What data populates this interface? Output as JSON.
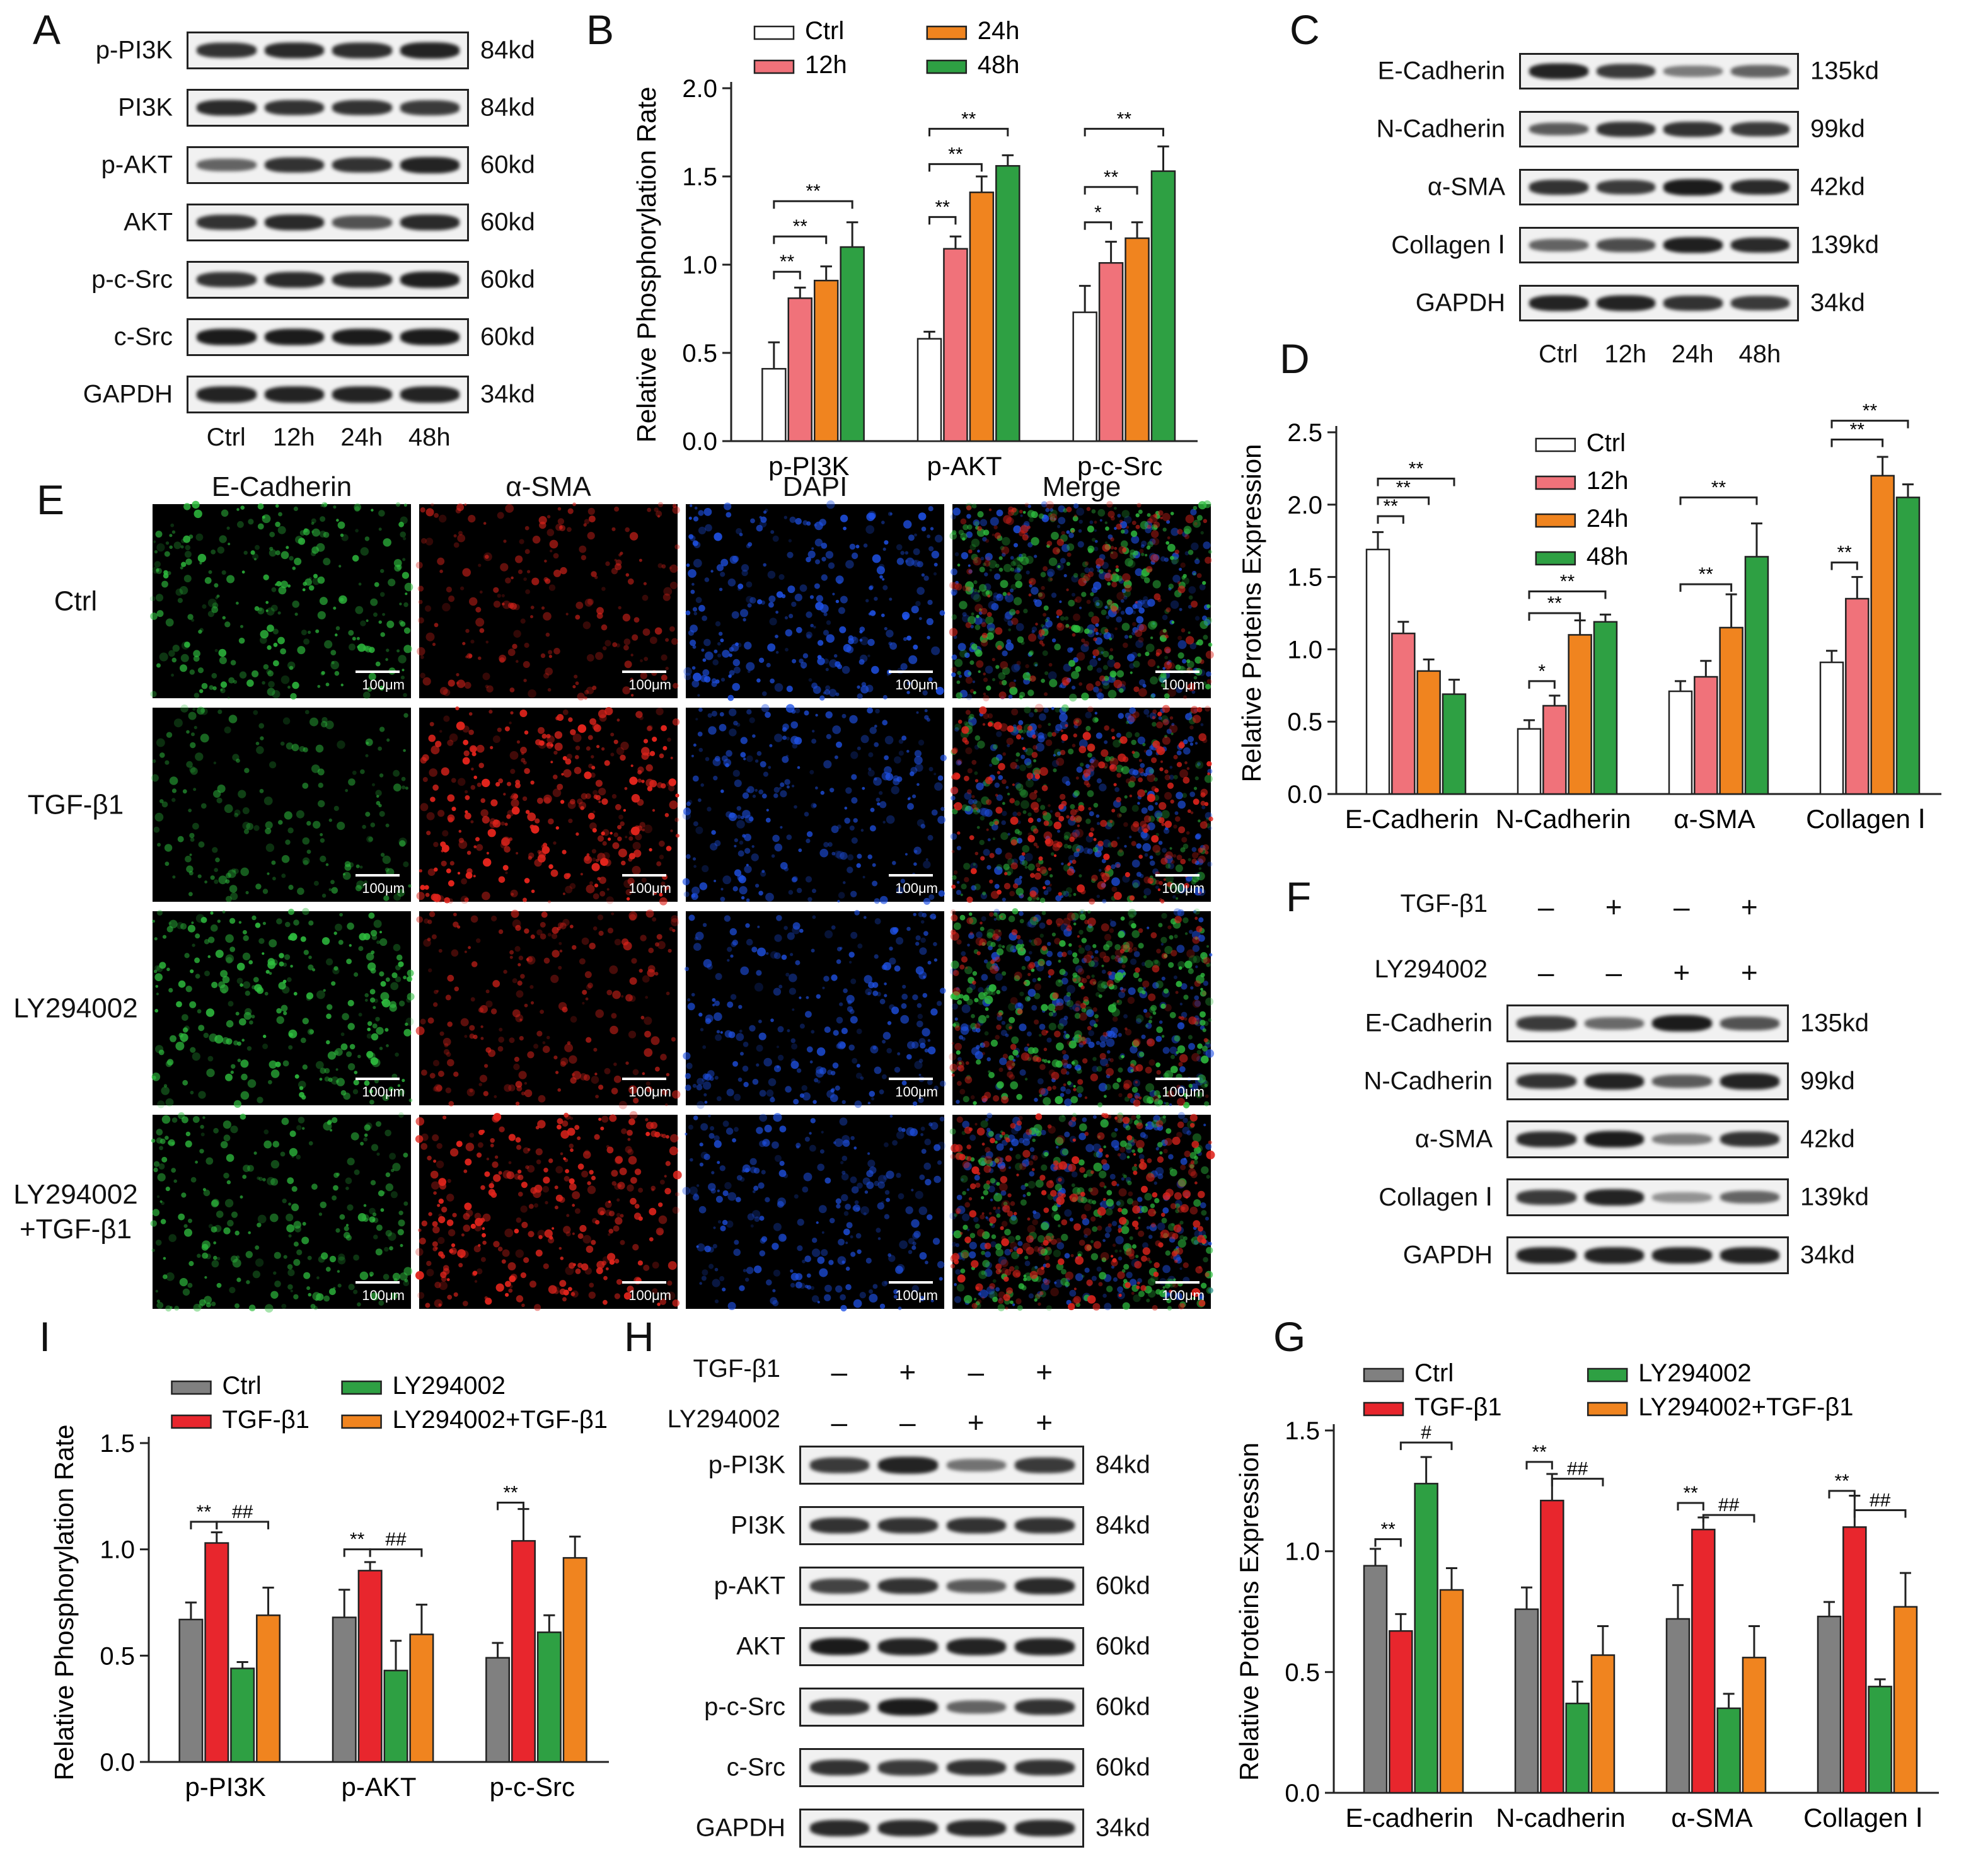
{
  "panel_labels": {
    "A": "A",
    "B": "B",
    "C": "C",
    "D": "D",
    "E": "E",
    "F": "F",
    "G": "G",
    "H": "H",
    "I": "I"
  },
  "blot_A": {
    "rows": [
      {
        "name": "p-PI3K",
        "kd": "84kd",
        "intensity": [
          0.85,
          0.9,
          0.88,
          0.95
        ]
      },
      {
        "name": "PI3K",
        "kd": "84kd",
        "intensity": [
          0.9,
          0.85,
          0.85,
          0.8
        ]
      },
      {
        "name": "p-AKT",
        "kd": "60kd",
        "intensity": [
          0.55,
          0.85,
          0.85,
          0.95
        ]
      },
      {
        "name": "AKT",
        "kd": "60kd",
        "intensity": [
          0.85,
          0.9,
          0.65,
          0.9
        ]
      },
      {
        "name": "p-c-Src",
        "kd": "60kd",
        "intensity": [
          0.85,
          0.9,
          0.9,
          0.98
        ]
      },
      {
        "name": "c-Src",
        "kd": "60kd",
        "intensity": [
          1,
          1,
          1,
          1
        ]
      },
      {
        "name": "GAPDH",
        "kd": "34kd",
        "intensity": [
          0.95,
          0.95,
          0.95,
          0.95
        ]
      }
    ],
    "lanes": [
      "Ctrl",
      "12h",
      "24h",
      "48h"
    ]
  },
  "blot_C": {
    "rows": [
      {
        "name": "E-Cadherin",
        "kd": "135kd",
        "intensity": [
          0.95,
          0.8,
          0.4,
          0.55
        ]
      },
      {
        "name": "N-Cadherin",
        "kd": "99kd",
        "intensity": [
          0.6,
          0.85,
          0.85,
          0.8
        ]
      },
      {
        "name": "α-SMA",
        "kd": "42kd",
        "intensity": [
          0.85,
          0.8,
          1,
          0.9
        ]
      },
      {
        "name": "Collagen Ⅰ",
        "kd": "139kd",
        "intensity": [
          0.55,
          0.7,
          0.98,
          0.9
        ]
      },
      {
        "name": "GAPDH",
        "kd": "34kd",
        "intensity": [
          0.95,
          0.95,
          0.85,
          0.8
        ]
      }
    ],
    "lanes": [
      "Ctrl",
      "12h",
      "24h",
      "48h"
    ]
  },
  "blot_F": {
    "treatments": [
      {
        "name": "TGF-β1",
        "signs": [
          "–",
          "+",
          "–",
          "+"
        ]
      },
      {
        "name": "LY294002",
        "signs": [
          "–",
          "–",
          "+",
          "+"
        ]
      }
    ],
    "rows": [
      {
        "name": "E-Cadherin",
        "kd": "135kd",
        "intensity": [
          0.8,
          0.5,
          1,
          0.65
        ]
      },
      {
        "name": "N-Cadherin",
        "kd": "99kd",
        "intensity": [
          0.85,
          0.95,
          0.6,
          0.95
        ]
      },
      {
        "name": "α-SMA",
        "kd": "42kd",
        "intensity": [
          0.9,
          1,
          0.4,
          0.85
        ]
      },
      {
        "name": "Collagen Ⅰ",
        "kd": "139kd",
        "intensity": [
          0.8,
          0.95,
          0.25,
          0.55
        ]
      },
      {
        "name": "GAPDH",
        "kd": "34kd",
        "intensity": [
          0.95,
          0.95,
          0.95,
          0.95
        ]
      }
    ]
  },
  "blot_H": {
    "treatments": [
      {
        "name": "TGF-β1",
        "signs": [
          "–",
          "+",
          "–",
          "+"
        ]
      },
      {
        "name": "LY294002",
        "signs": [
          "–",
          "–",
          "+",
          "+"
        ]
      }
    ],
    "rows": [
      {
        "name": "p-PI3K",
        "kd": "84kd",
        "intensity": [
          0.8,
          0.95,
          0.45,
          0.8
        ]
      },
      {
        "name": "PI3K",
        "kd": "84kd",
        "intensity": [
          0.85,
          0.85,
          0.85,
          0.85
        ]
      },
      {
        "name": "p-AKT",
        "kd": "60kd",
        "intensity": [
          0.75,
          0.85,
          0.6,
          0.9
        ]
      },
      {
        "name": "AKT",
        "kd": "60kd",
        "intensity": [
          1,
          0.95,
          0.95,
          0.95
        ]
      },
      {
        "name": "p-c-Src",
        "kd": "60kd",
        "intensity": [
          0.85,
          1,
          0.55,
          0.85
        ]
      },
      {
        "name": "c-Src",
        "kd": "60kd",
        "intensity": [
          0.85,
          0.8,
          0.85,
          0.85
        ]
      },
      {
        "name": "GAPDH",
        "kd": "34kd",
        "intensity": [
          0.9,
          0.9,
          0.9,
          0.9
        ]
      }
    ]
  },
  "microscopy_E": {
    "columns": [
      "E-Cadherin",
      "α-SMA",
      "DAPI",
      "Merge"
    ],
    "rows": [
      "Ctrl",
      "TGF-β1",
      "LY294002",
      "LY294002\n+TGF-β1"
    ],
    "scale_label": "100μm",
    "colors": {
      "green": "#2fbf3f",
      "red": "#e0241c",
      "blue": "#1f52e8"
    }
  },
  "chart_data": [
    {
      "panel": "B",
      "type": "bar",
      "ylabel": "Relative Phosphorylation Rate",
      "xlabel": "",
      "ylim": [
        0,
        2.0
      ],
      "yticks": [
        "0.0",
        "0.5",
        "1.0",
        "1.5",
        "2.0"
      ],
      "categories": [
        "p-PI3K",
        "p-AKT",
        "p-c-Src"
      ],
      "series": [
        {
          "name": "Ctrl",
          "color": "#ffffff",
          "values": [
            0.41,
            0.58,
            0.73
          ],
          "err": [
            0.15,
            0.04,
            0.15
          ]
        },
        {
          "name": "12h",
          "color": "#f0727a",
          "values": [
            0.81,
            1.09,
            1.01
          ],
          "err": [
            0.06,
            0.07,
            0.12
          ]
        },
        {
          "name": "24h",
          "color": "#f0841f",
          "values": [
            0.91,
            1.41,
            1.15
          ],
          "err": [
            0.08,
            0.09,
            0.09
          ]
        },
        {
          "name": "48h",
          "color": "#2ea043",
          "values": [
            1.1,
            1.56,
            1.53
          ],
          "err": [
            0.14,
            0.06,
            0.14
          ]
        }
      ],
      "legend": "top",
      "legend_order": [
        0,
        2,
        1,
        3
      ],
      "sig": [
        {
          "g": 0,
          "from": 0,
          "to": 1,
          "label": "**",
          "y": 0.96
        },
        {
          "g": 0,
          "from": 0,
          "to": 2,
          "label": "**",
          "y": 1.16
        },
        {
          "g": 0,
          "from": 0,
          "to": 3,
          "label": "**",
          "y": 1.36
        },
        {
          "g": 1,
          "from": 0,
          "to": 1,
          "label": "**",
          "y": 1.27
        },
        {
          "g": 1,
          "from": 0,
          "to": 2,
          "label": "**",
          "y": 1.57
        },
        {
          "g": 1,
          "from": 0,
          "to": 3,
          "label": "**",
          "y": 1.77
        },
        {
          "g": 2,
          "from": 0,
          "to": 1,
          "label": "*",
          "y": 1.24
        },
        {
          "g": 2,
          "from": 0,
          "to": 2,
          "label": "**",
          "y": 1.44
        },
        {
          "g": 2,
          "from": 0,
          "to": 3,
          "label": "**",
          "y": 1.77
        }
      ]
    },
    {
      "panel": "D",
      "type": "bar",
      "ylabel": "Relative Proteins Expression",
      "xlabel": "",
      "ylim": [
        0,
        2.5
      ],
      "yticks": [
        "0.0",
        "0.5",
        "1.0",
        "1.5",
        "2.0",
        "2.5"
      ],
      "categories": [
        "E-Cadherin",
        "N-Cadherin",
        "α-SMA",
        "Collagen Ⅰ"
      ],
      "series": [
        {
          "name": "Ctrl",
          "color": "#ffffff",
          "values": [
            1.69,
            0.45,
            0.71,
            0.91
          ],
          "err": [
            0.12,
            0.06,
            0.07,
            0.08
          ]
        },
        {
          "name": "12h",
          "color": "#f0727a",
          "values": [
            1.11,
            0.61,
            0.81,
            1.35
          ],
          "err": [
            0.08,
            0.07,
            0.11,
            0.15
          ]
        },
        {
          "name": "24h",
          "color": "#f0841f",
          "values": [
            0.85,
            1.1,
            1.15,
            2.2
          ],
          "err": [
            0.08,
            0.1,
            0.23,
            0.13
          ]
        },
        {
          "name": "48h",
          "color": "#2ea043",
          "values": [
            0.69,
            1.19,
            1.64,
            2.05
          ],
          "err": [
            0.1,
            0.05,
            0.23,
            0.09
          ]
        }
      ],
      "legend": "inside",
      "legend_order": [
        0,
        1,
        2,
        3
      ],
      "sig": [
        {
          "g": 0,
          "from": 0,
          "to": 1,
          "label": "**",
          "y": 1.92
        },
        {
          "g": 0,
          "from": 0,
          "to": 2,
          "label": "**",
          "y": 2.05
        },
        {
          "g": 0,
          "from": 0,
          "to": 3,
          "label": "**",
          "y": 2.18
        },
        {
          "g": 1,
          "from": 0,
          "to": 1,
          "label": "*",
          "y": 0.78
        },
        {
          "g": 1,
          "from": 0,
          "to": 2,
          "label": "**",
          "y": 1.25
        },
        {
          "g": 1,
          "from": 0,
          "to": 3,
          "label": "**",
          "y": 1.4
        },
        {
          "g": 2,
          "from": 0,
          "to": 2,
          "label": "**",
          "y": 1.45
        },
        {
          "g": 2,
          "from": 0,
          "to": 3,
          "label": "**",
          "y": 2.05
        },
        {
          "g": 3,
          "from": 0,
          "to": 1,
          "label": "**",
          "y": 1.6
        },
        {
          "g": 3,
          "from": 0,
          "to": 2,
          "label": "**",
          "y": 2.45
        },
        {
          "g": 3,
          "from": 0,
          "to": 3,
          "label": "**",
          "y": 2.58
        }
      ]
    },
    {
      "panel": "I",
      "type": "bar",
      "ylabel": "Relative Phosphorylation Rate",
      "xlabel": "",
      "ylim": [
        0,
        1.5
      ],
      "yticks": [
        "0.0",
        "0.5",
        "1.0",
        "1.5"
      ],
      "categories": [
        "p-PI3K",
        "p-AKT",
        "p-c-Src"
      ],
      "series": [
        {
          "name": "Ctrl",
          "color": "#808080",
          "values": [
            0.67,
            0.68,
            0.49
          ],
          "err": [
            0.08,
            0.13,
            0.07
          ]
        },
        {
          "name": "TGF-β1",
          "color": "#e8262d",
          "values": [
            1.03,
            0.9,
            1.04
          ],
          "err": [
            0.05,
            0.04,
            0.15
          ]
        },
        {
          "name": "LY294002",
          "color": "#2ea043",
          "values": [
            0.44,
            0.43,
            0.61
          ],
          "err": [
            0.03,
            0.14,
            0.08
          ]
        },
        {
          "name": "LY294002+TGF-β1",
          "color": "#f0841f",
          "values": [
            0.69,
            0.6,
            0.96
          ],
          "err": [
            0.13,
            0.14,
            0.1
          ]
        }
      ],
      "legend": "top",
      "legend_order": [
        0,
        2,
        1,
        3
      ],
      "sig": [
        {
          "g": 0,
          "from": 0,
          "to": 1,
          "label": "**",
          "y": 1.13
        },
        {
          "g": 0,
          "from": 1,
          "to": 3,
          "label": "##",
          "y": 1.13
        },
        {
          "g": 1,
          "from": 0,
          "to": 1,
          "label": "**",
          "y": 1.0
        },
        {
          "g": 1,
          "from": 1,
          "to": 3,
          "label": "##",
          "y": 1.0
        },
        {
          "g": 2,
          "from": 0,
          "to": 1,
          "label": "**",
          "y": 1.22
        }
      ]
    },
    {
      "panel": "G",
      "type": "bar",
      "ylabel": "Relative Proteins Expression",
      "xlabel": "",
      "ylim": [
        0,
        1.5
      ],
      "yticks": [
        "0.0",
        "0.5",
        "1.0",
        "1.5"
      ],
      "categories": [
        "E-cadherin",
        "N-cadherin",
        "α-SMA",
        "Collagen Ⅰ"
      ],
      "series": [
        {
          "name": "Ctrl",
          "color": "#808080",
          "values": [
            0.94,
            0.76,
            0.72,
            0.73
          ],
          "err": [
            0.07,
            0.09,
            0.14,
            0.06
          ]
        },
        {
          "name": "TGF-β1",
          "color": "#e8262d",
          "values": [
            0.67,
            1.21,
            1.09,
            1.1
          ],
          "err": [
            0.07,
            0.11,
            0.05,
            0.13
          ]
        },
        {
          "name": "LY294002",
          "color": "#2ea043",
          "values": [
            1.28,
            0.37,
            0.35,
            0.44
          ],
          "err": [
            0.11,
            0.09,
            0.06,
            0.03
          ]
        },
        {
          "name": "LY294002+TGF-β1",
          "color": "#f0841f",
          "values": [
            0.84,
            0.57,
            0.56,
            0.77
          ],
          "err": [
            0.09,
            0.12,
            0.13,
            0.14
          ]
        }
      ],
      "legend": "top",
      "legend_order": [
        0,
        2,
        1,
        3
      ],
      "sig": [
        {
          "g": 0,
          "from": 0,
          "to": 1,
          "label": "**",
          "y": 1.05
        },
        {
          "g": 0,
          "from": 1,
          "to": 3,
          "label": "#",
          "y": 1.45
        },
        {
          "g": 1,
          "from": 0,
          "to": 1,
          "label": "**",
          "y": 1.37
        },
        {
          "g": 1,
          "from": 1,
          "to": 3,
          "label": "##",
          "y": 1.3
        },
        {
          "g": 2,
          "from": 0,
          "to": 1,
          "label": "**",
          "y": 1.2
        },
        {
          "g": 2,
          "from": 1,
          "to": 3,
          "label": "##",
          "y": 1.15
        },
        {
          "g": 3,
          "from": 0,
          "to": 1,
          "label": "**",
          "y": 1.25
        },
        {
          "g": 3,
          "from": 1,
          "to": 3,
          "label": "##",
          "y": 1.17
        }
      ]
    }
  ]
}
